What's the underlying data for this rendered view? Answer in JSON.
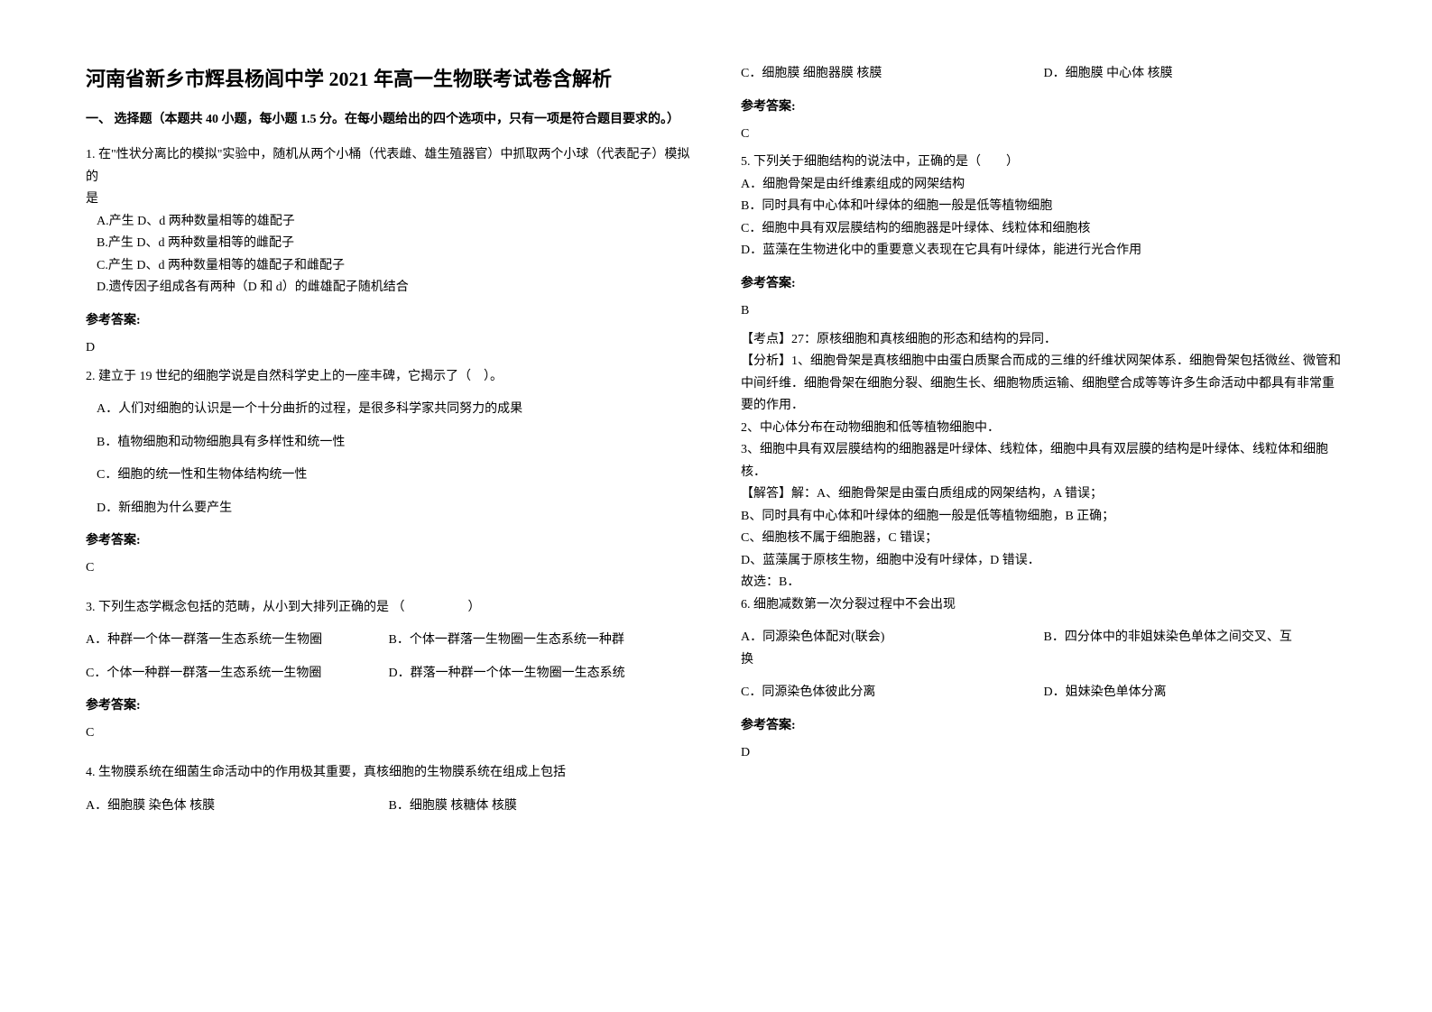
{
  "title": "河南省新乡市辉县杨闾中学 2021 年高一生物联考试卷含解析",
  "section1": {
    "header": "一、 选择题（本题共 40 小题，每小题 1.5 分。在每小题给出的四个选项中，只有一项是符合题目要求的。）"
  },
  "q1": {
    "text1": "1. 在\"性状分离比的模拟\"实验中，随机从两个小桶（代表雌、雄生殖器官）中抓取两个小球（代表配子）模拟的",
    "text2": "是",
    "optA": "A.产生 D、d 两种数量相等的雄配子",
    "optB": "B.产生 D、d 两种数量相等的雌配子",
    "optC": "C.产生 D、d 两种数量相等的雄配子和雌配子",
    "optD": "D.遗传因子组成各有两种（D 和 d）的雌雄配子随机结合",
    "answerLabel": "参考答案:",
    "answer": "D"
  },
  "q2": {
    "text": "2. 建立于 19 世纪的细胞学说是自然科学史上的一座丰碑，它揭示了（　）。",
    "optA": "A．人们对细胞的认识是一个十分曲折的过程，是很多科学家共同努力的成果",
    "optB": "B．植物细胞和动物细胞具有多样性和统一性",
    "optC": "C．细胞的统一性和生物体结构统一性",
    "optD": "D．新细胞为什么要产生",
    "answerLabel": "参考答案:",
    "answer": "C"
  },
  "q3": {
    "text": "3. 下列生态学概念包括的范畴，从小到大排列正确的是 （　　　　　）",
    "optA": "A．种群一个体一群落一生态系统一生物圈",
    "optB": "B．个体一群落一生物圈一生态系统一种群",
    "optC": "C．个体一种群一群落一生态系统一生物圈",
    "optD": "D．群落一种群一个体一生物圈一生态系统",
    "answerLabel": "参考答案:",
    "answer": "C"
  },
  "q4": {
    "text": "4. 生物膜系统在细菌生命活动中的作用极其重要，真核细胞的生物膜系统在组成上包括",
    "optA": "A．细胞膜 染色体 核膜",
    "optB": "B．细胞膜 核糖体 核膜",
    "optC": "C．细胞膜 细胞器膜 核膜",
    "optD": "D．细胞膜 中心体 核膜",
    "answerLabel": "参考答案:",
    "answer": "C"
  },
  "q5": {
    "text": "5. 下列关于细胞结构的说法中，正确的是（　　）",
    "optA": "A．细胞骨架是由纤维素组成的网架结构",
    "optB": "B．同时具有中心体和叶绿体的细胞一般是低等植物细胞",
    "optC": "C．细胞中具有双层膜结构的细胞器是叶绿体、线粒体和细胞核",
    "optD": "D．蓝藻在生物进化中的重要意义表现在它具有叶绿体，能进行光合作用",
    "answerLabel": "参考答案:",
    "answer": "B",
    "exp1": "【考点】27：原核细胞和真核细胞的形态和结构的异同．",
    "exp2": "【分析】1、细胞骨架是真核细胞中由蛋白质聚合而成的三维的纤维状网架体系．细胞骨架包括微丝、微管和中间纤维．细胞骨架在细胞分裂、细胞生长、细胞物质运输、细胞壁合成等等许多生命活动中都具有非常重要的作用．",
    "exp3": "2、中心体分布在动物细胞和低等植物细胞中．",
    "exp4": "3、细胞中具有双层膜结构的细胞器是叶绿体、线粒体，细胞中具有双层膜的结构是叶绿体、线粒体和细胞核．",
    "exp5": "【解答】解：A、细胞骨架是由蛋白质组成的网架结构，A 错误；",
    "exp6": "B、同时具有中心体和叶绿体的细胞一般是低等植物细胞，B 正确；",
    "exp7": "C、细胞核不属于细胞器，C 错误；",
    "exp8": "D、蓝藻属于原核生物，细胞中没有叶绿体，D 错误．",
    "exp9": "故选：B．"
  },
  "q6": {
    "text": "6. 细胞减数第一次分裂过程中不会出现",
    "optA": "A．同源染色体配对(联会)",
    "optB": "B．四分体中的非姐妹染色单体之间交叉、互",
    "optB2": "换",
    "optC": "C．同源染色体彼此分离",
    "optD": "D．姐妹染色单体分离",
    "answerLabel": "参考答案:",
    "answer": "D"
  }
}
